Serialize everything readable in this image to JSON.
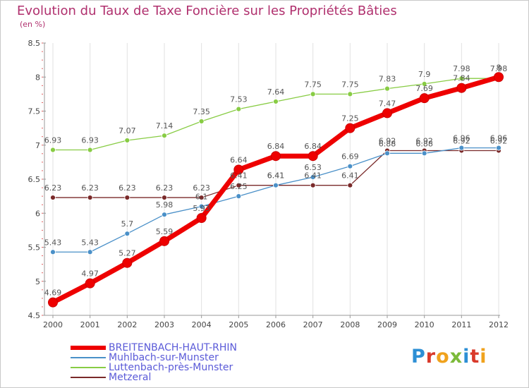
{
  "header": {
    "title": "Evolution du Taux de Taxe Foncière sur les Propriétés Bâties",
    "unit": "(en %)"
  },
  "logo": {
    "letters": [
      "P",
      "r",
      "o",
      "x",
      "i",
      "t",
      "i"
    ],
    "colors": [
      "#2d8fd5",
      "#d93a2b",
      "#f0a21d",
      "#7cba3a",
      "#2d8fd5",
      "#d93a2b",
      "#f0a21d"
    ]
  },
  "chart_data": {
    "type": "line",
    "x": [
      2000,
      2001,
      2002,
      2003,
      2004,
      2005,
      2006,
      2007,
      2008,
      2009,
      2010,
      2011,
      2012
    ],
    "ylim": [
      4.5,
      8.5
    ],
    "yticks": [
      "4.5",
      "5",
      "5.5",
      "6",
      "6.5",
      "7",
      "7.5",
      "8",
      "8.5"
    ],
    "xticks": [
      "2000",
      "2001",
      "2002",
      "2003",
      "2004",
      "2005",
      "2006",
      "2007",
      "2008",
      "2009",
      "2010",
      "2011",
      "2012"
    ],
    "series": [
      {
        "name": "Metzeral",
        "color": "#7a2a2a",
        "values": [
          6.23,
          6.23,
          6.23,
          6.23,
          6.23,
          6.41,
          6.41,
          6.41,
          6.41,
          6.92,
          6.92,
          6.92,
          6.92
        ],
        "labels": [
          "6.23",
          "6.23",
          "6.23",
          "6.23",
          "6.23",
          "6.41",
          "6.41",
          "6.41",
          "6.41",
          "6.92",
          "6.92",
          "6.92",
          "6.92"
        ]
      },
      {
        "name": "Muhlbach-sur-Munster",
        "color": "#4a90c8",
        "values": [
          5.43,
          5.43,
          5.7,
          5.98,
          6.1,
          6.25,
          6.41,
          6.53,
          6.69,
          6.88,
          6.88,
          6.96,
          6.96
        ],
        "labels": [
          "5.43",
          "5.43",
          "5.7",
          "5.98",
          "6.1",
          "6.25",
          "6.41",
          "6.53",
          "6.69",
          "6.88",
          "6.88",
          "6.96",
          "6.96"
        ]
      },
      {
        "name": "Luttenbach-près-Munster",
        "color": "#88cc44",
        "values": [
          6.93,
          6.93,
          7.07,
          7.14,
          7.35,
          7.53,
          7.64,
          7.75,
          7.75,
          7.83,
          7.9,
          7.98,
          7.98
        ],
        "labels": [
          "6.93",
          "6.93",
          "7.07",
          "7.14",
          "7.35",
          "7.53",
          "7.64",
          "7.75",
          "7.75",
          "7.83",
          "7.9",
          "7.98",
          "7.98"
        ]
      },
      {
        "name": "BREITENBACH-HAUT-RHIN",
        "color": "#ee0000",
        "values": [
          4.69,
          4.97,
          5.27,
          5.59,
          5.93,
          6.64,
          6.84,
          6.84,
          7.25,
          7.47,
          7.69,
          7.84,
          8.0
        ],
        "labels": [
          "4.69",
          "4.97",
          "5.27",
          "5.59",
          "5.93",
          "6.64",
          "6.84",
          "6.84",
          "7.25",
          "7.47",
          "7.69",
          "7.84",
          "8"
        ]
      }
    ],
    "legend": [
      "BREITENBACH-HAUT-RHIN",
      "Muhlbach-sur-Munster",
      "Luttenbach-près-Munster",
      "Metzeral"
    ],
    "legend_position": "bottom-left"
  }
}
